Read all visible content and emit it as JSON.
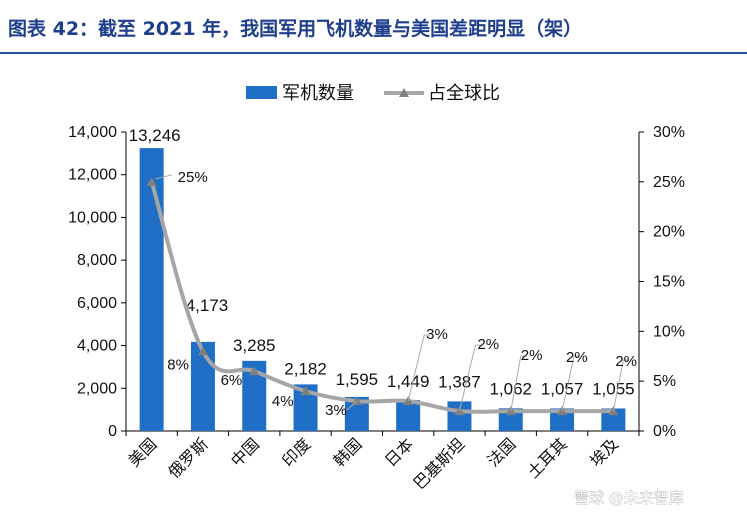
{
  "header": {
    "title": "图表 42：截至 2021 年，我国军用飞机数量与美国差距明显（架）"
  },
  "watermark": {
    "text": "雪球 @未来智库"
  },
  "colors": {
    "bar": "#1f6fc7",
    "line": "#a6a6a6",
    "marker": "#7f7f7f"
  },
  "chart_data": {
    "type": "bar",
    "categories": [
      "美国",
      "俄罗斯",
      "中国",
      "印度",
      "韩国",
      "日本",
      "巴基斯坦",
      "法国",
      "土耳其",
      "埃及"
    ],
    "series": [
      {
        "name": "军机数量",
        "type": "bar",
        "axis": "left",
        "values": [
          13246,
          4173,
          3285,
          2182,
          1595,
          1449,
          1387,
          1062,
          1057,
          1055
        ],
        "labels": [
          "13,246",
          "4,173",
          "3,285",
          "2,182",
          "1,595",
          "1,449",
          "1,387",
          "1,062",
          "1,057",
          "1,055"
        ]
      },
      {
        "name": "占全球比",
        "type": "line",
        "axis": "right",
        "values": [
          25,
          8,
          6,
          4,
          3,
          3,
          2,
          2,
          2,
          2
        ],
        "labels": [
          "25%",
          "8%",
          "6%",
          "4%",
          "3%",
          "3%",
          "2%",
          "2%",
          "2%",
          "2%"
        ]
      }
    ],
    "left_axis": {
      "min": 0,
      "max": 14000,
      "step": 2000,
      "tick_labels": [
        "0",
        "2,000",
        "4,000",
        "6,000",
        "8,000",
        "10,000",
        "12,000",
        "14,000"
      ]
    },
    "right_axis": {
      "min": 0,
      "max": 30,
      "step": 5,
      "tick_labels": [
        "0%",
        "5%",
        "10%",
        "15%",
        "20%",
        "25%",
        "30%"
      ]
    },
    "legend": {
      "position": "top"
    }
  }
}
